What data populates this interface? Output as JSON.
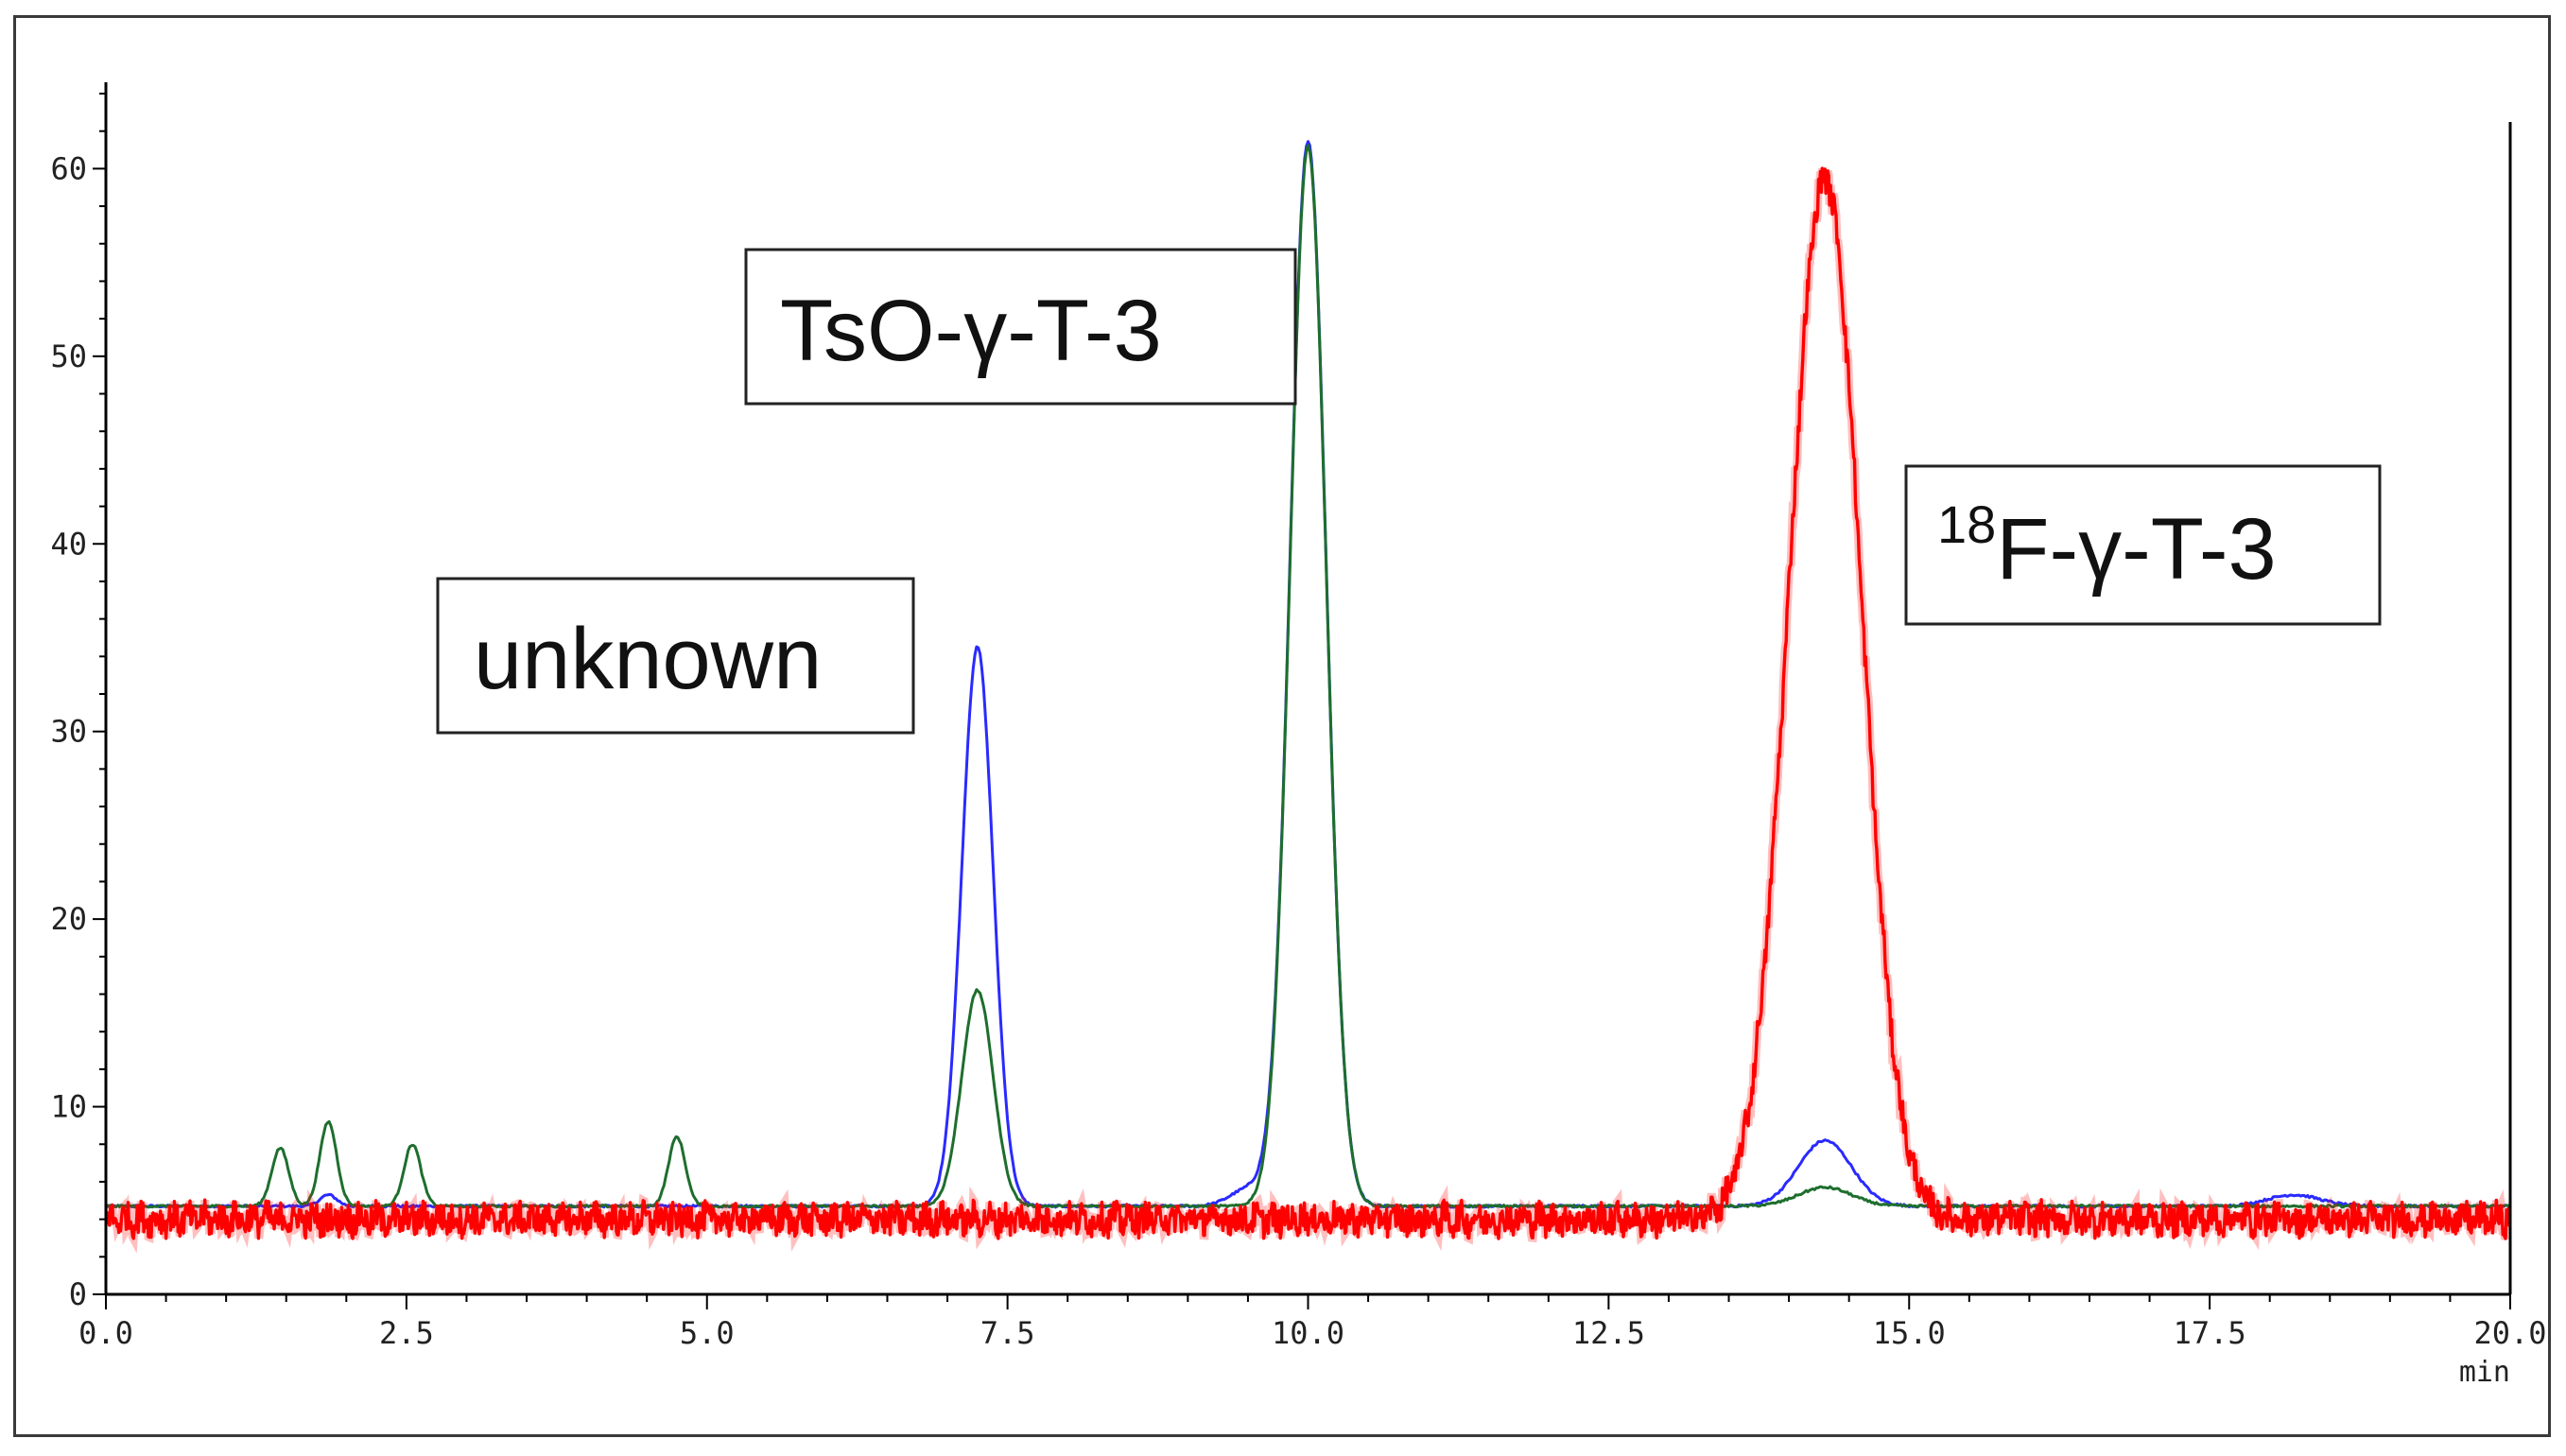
{
  "chart_data": {
    "type": "line",
    "title": "",
    "xlabel": "min",
    "ylabel": "",
    "xlim": [
      0,
      20
    ],
    "ylim": [
      0,
      64
    ],
    "x_ticks": [
      "0.0",
      "2.5",
      "5.0",
      "7.5",
      "10.0",
      "12.5",
      "15.0",
      "17.5",
      "20.0"
    ],
    "y_ticks": [
      "0",
      "10",
      "20",
      "30",
      "40",
      "50",
      "60"
    ],
    "grid": false,
    "series": [
      {
        "name": "blue trace",
        "color": "#2a2aff",
        "baseline": 4.7,
        "peaks": [
          {
            "x": 1.85,
            "y": 5.3
          },
          {
            "x": 7.25,
            "y": 34.5
          },
          {
            "x": 9.5,
            "y": 5.6
          },
          {
            "x": 10.0,
            "y": 61.5
          },
          {
            "x": 14.3,
            "y": 8.2
          },
          {
            "x": 18.2,
            "y": 5.3
          }
        ]
      },
      {
        "name": "green trace",
        "color": "#1e6e2e",
        "baseline": 4.7,
        "peaks": [
          {
            "x": 1.45,
            "y": 7.8
          },
          {
            "x": 1.85,
            "y": 9.2
          },
          {
            "x": 2.55,
            "y": 8.0
          },
          {
            "x": 4.75,
            "y": 8.4
          },
          {
            "x": 7.25,
            "y": 16.2
          },
          {
            "x": 10.0,
            "y": 61.2
          },
          {
            "x": 14.3,
            "y": 5.7
          }
        ]
      },
      {
        "name": "red trace",
        "color": "#ff0000",
        "baseline": 4.0,
        "peaks": [
          {
            "x": 14.3,
            "y": 59.5
          }
        ]
      }
    ],
    "annotations": [
      {
        "text": "unknown",
        "points_to": "peak at 7.25 min"
      },
      {
        "text": "TsO-γ-T-3",
        "points_to": "peak at 10.0 min"
      },
      {
        "superscript": "18",
        "text": "F-γ-T-3",
        "points_to": "peak at 14.3 min"
      }
    ]
  }
}
